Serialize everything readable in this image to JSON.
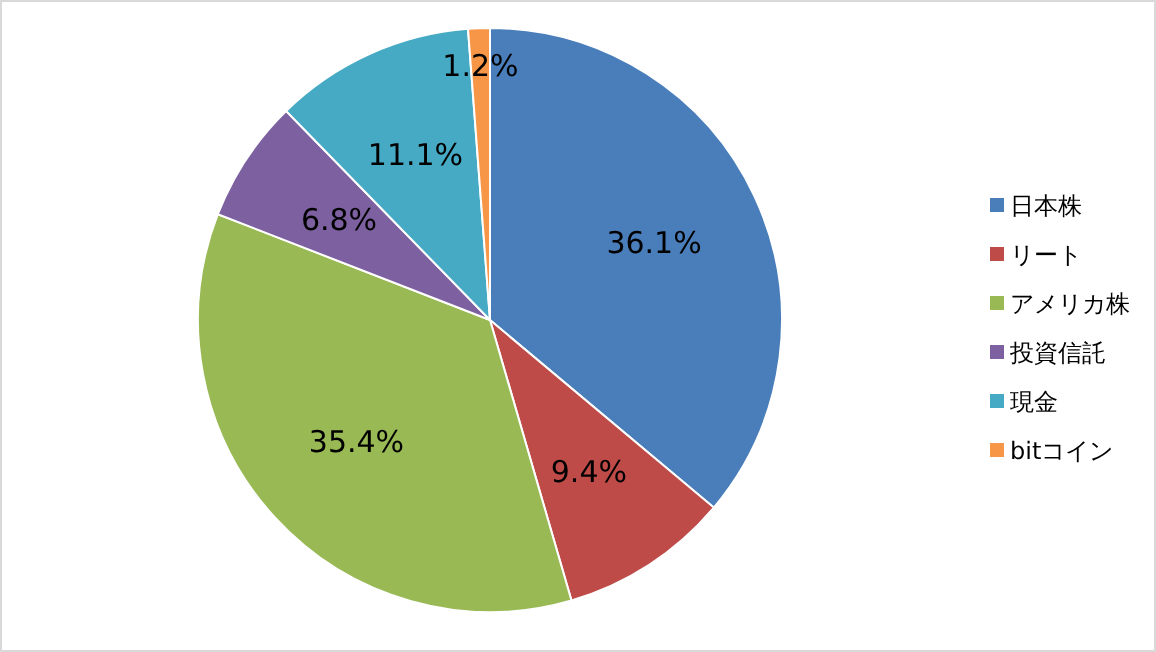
{
  "chart_data": {
    "type": "pie",
    "categories": [
      "日本株",
      "リート",
      "アメリカ株",
      "投資信託",
      "現金",
      "bitコイン"
    ],
    "values": [
      36.1,
      9.4,
      35.4,
      6.8,
      11.1,
      1.2
    ],
    "colors": [
      "#4a7ebb",
      "#be4b48",
      "#98b954",
      "#7d60a0",
      "#46aac5",
      "#f79646"
    ],
    "value_labels": [
      "36.1%",
      "9.4%",
      "35.4%",
      "6.8%",
      "11.1%",
      "1.2%"
    ],
    "legend": "right"
  }
}
